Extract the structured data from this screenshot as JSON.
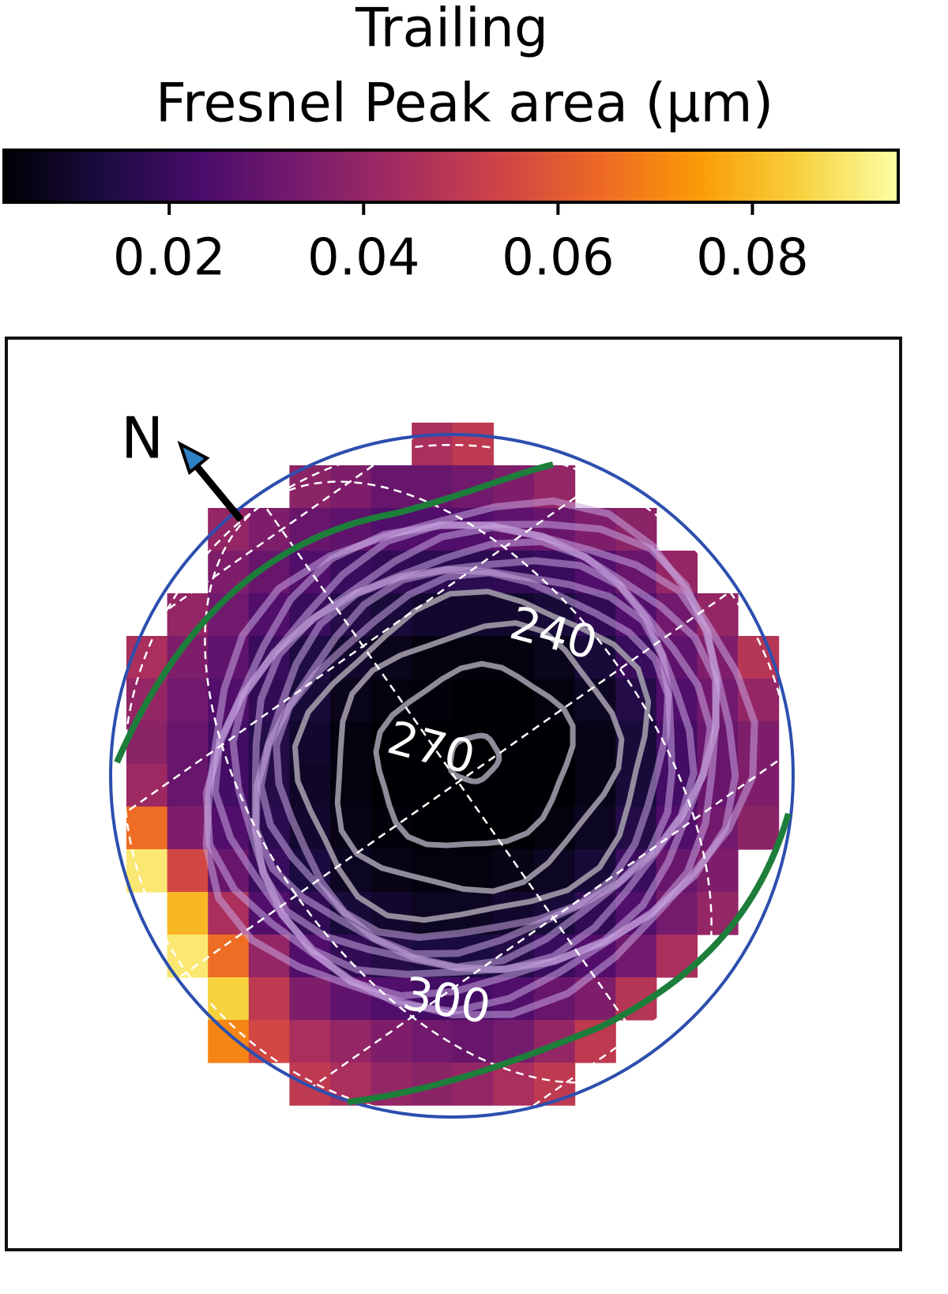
{
  "chart_data": {
    "type": "heatmap",
    "title": "Trailing",
    "colorbar_label": "Fresnel Peak area  (μm)",
    "clim": [
      0.003,
      0.095
    ],
    "cticks": [
      0.02,
      0.04,
      0.06,
      0.08
    ],
    "colors": [
      "#000004",
      "#1b0c41",
      "#4a0c6b",
      "#781c6d",
      "#a52c60",
      "#cf4446",
      "#ed6925",
      "#fb9b06",
      "#f7d13d",
      "#fcffa4"
    ],
    "north_label": "N",
    "contour_labels": [
      "240",
      "270",
      "300"
    ],
    "z": [
      [
        null,
        null,
        null,
        null,
        null,
        null,
        null,
        0.045,
        0.05,
        null,
        null,
        null,
        null,
        null,
        null,
        null
      ],
      [
        null,
        null,
        null,
        null,
        0.038,
        0.035,
        0.03,
        0.03,
        0.032,
        0.035,
        0.04,
        null,
        null,
        null,
        null,
        null
      ],
      [
        null,
        null,
        0.04,
        0.035,
        0.03,
        0.028,
        0.025,
        0.025,
        0.025,
        0.028,
        0.03,
        0.035,
        0.038,
        null,
        null,
        null
      ],
      [
        null,
        null,
        0.035,
        0.03,
        0.025,
        0.02,
        0.018,
        0.017,
        0.017,
        0.018,
        0.02,
        0.025,
        0.03,
        0.04,
        null,
        null
      ],
      [
        null,
        0.04,
        0.032,
        0.025,
        0.02,
        0.015,
        0.012,
        0.01,
        0.01,
        0.01,
        0.012,
        0.018,
        0.025,
        0.032,
        0.04,
        null
      ],
      [
        0.045,
        0.035,
        0.028,
        0.02,
        0.014,
        0.01,
        0.007,
        0.005,
        0.005,
        0.005,
        0.007,
        0.012,
        0.02,
        0.028,
        0.035,
        0.048
      ],
      [
        0.04,
        0.032,
        0.025,
        0.018,
        0.012,
        0.007,
        0.005,
        0.004,
        0.003,
        0.003,
        0.005,
        0.008,
        0.015,
        0.025,
        0.032,
        0.04
      ],
      [
        0.038,
        0.03,
        0.022,
        0.015,
        0.01,
        0.005,
        0.003,
        0.002,
        0.002,
        0.002,
        0.003,
        0.006,
        0.012,
        0.022,
        0.03,
        0.035
      ],
      [
        0.042,
        0.03,
        0.022,
        0.015,
        0.009,
        0.005,
        0.003,
        0.002,
        0.001,
        0.002,
        0.003,
        0.006,
        0.012,
        0.022,
        0.03,
        0.035
      ],
      [
        0.065,
        0.035,
        0.025,
        0.017,
        0.01,
        0.006,
        0.004,
        0.003,
        0.003,
        0.003,
        0.005,
        0.008,
        0.015,
        0.025,
        0.032,
        0.038
      ],
      [
        0.09,
        0.055,
        0.03,
        0.02,
        0.013,
        0.008,
        0.006,
        0.005,
        0.005,
        0.006,
        0.008,
        0.012,
        0.02,
        0.03,
        0.035,
        null
      ],
      [
        null,
        0.08,
        0.045,
        0.025,
        0.018,
        0.012,
        0.01,
        0.008,
        0.008,
        0.01,
        0.012,
        0.018,
        0.025,
        0.033,
        0.04,
        null
      ],
      [
        null,
        0.09,
        0.065,
        0.04,
        0.025,
        0.018,
        0.015,
        0.013,
        0.013,
        0.015,
        0.02,
        0.025,
        0.032,
        0.045,
        null,
        null
      ],
      [
        null,
        null,
        0.085,
        0.05,
        0.035,
        0.028,
        0.025,
        0.022,
        0.022,
        0.025,
        0.03,
        0.035,
        0.048,
        null,
        null,
        null
      ],
      [
        null,
        null,
        0.07,
        0.055,
        0.045,
        0.04,
        0.035,
        0.032,
        0.03,
        0.033,
        0.04,
        0.05,
        null,
        null,
        null,
        null
      ],
      [
        null,
        null,
        null,
        null,
        0.05,
        0.045,
        0.04,
        0.038,
        0.04,
        0.045,
        0.05,
        null,
        null,
        null,
        null,
        null
      ]
    ]
  }
}
